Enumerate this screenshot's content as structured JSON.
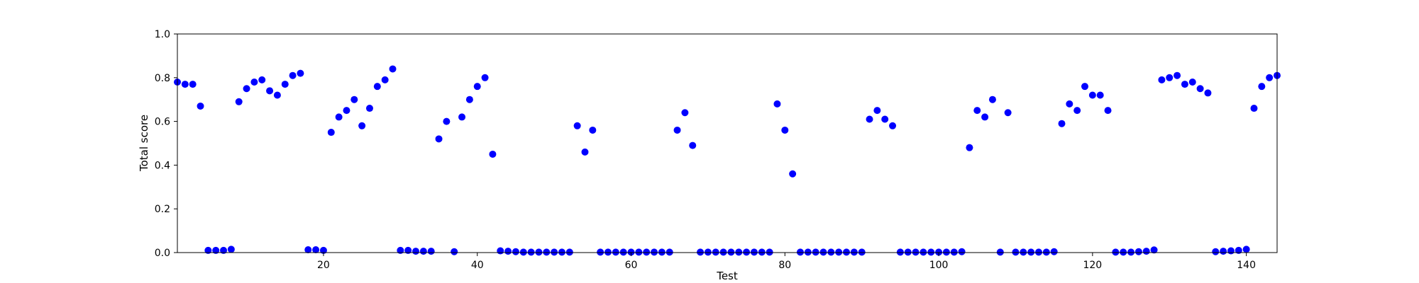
{
  "chart_data": {
    "type": "scatter",
    "title": "",
    "xlabel": "Test",
    "ylabel": "Total score",
    "xlim": [
      1,
      144
    ],
    "ylim": [
      0.0,
      1.0
    ],
    "xticks": [
      20,
      40,
      60,
      80,
      100,
      120,
      140
    ],
    "yticks": [
      0.0,
      0.2,
      0.4,
      0.6,
      0.8,
      1.0
    ],
    "xtick_labels": [
      "20",
      "40",
      "60",
      "80",
      "100",
      "120",
      "140"
    ],
    "ytick_labels": [
      "0.0",
      "0.2",
      "0.4",
      "0.6",
      "0.8",
      "1.0"
    ],
    "grid": false,
    "marker_color": "#0000ff",
    "x": [
      1,
      2,
      3,
      4,
      5,
      6,
      7,
      8,
      9,
      10,
      11,
      12,
      13,
      14,
      15,
      16,
      17,
      18,
      19,
      20,
      21,
      22,
      23,
      24,
      25,
      26,
      27,
      28,
      29,
      30,
      31,
      32,
      33,
      34,
      35,
      36,
      37,
      38,
      39,
      40,
      41,
      42,
      43,
      44,
      45,
      46,
      47,
      48,
      49,
      50,
      51,
      52,
      53,
      54,
      55,
      56,
      57,
      58,
      59,
      60,
      61,
      62,
      63,
      64,
      65,
      66,
      67,
      68,
      69,
      70,
      71,
      72,
      73,
      74,
      75,
      76,
      77,
      78,
      79,
      80,
      81,
      82,
      83,
      84,
      85,
      86,
      87,
      88,
      89,
      90,
      91,
      92,
      93,
      94,
      95,
      96,
      97,
      98,
      99,
      100,
      101,
      102,
      103,
      104,
      105,
      106,
      107,
      108,
      109,
      110,
      111,
      112,
      113,
      114,
      115,
      116,
      117,
      118,
      119,
      120,
      121,
      122,
      123,
      124,
      125,
      126,
      127,
      128,
      129,
      130,
      131,
      132,
      133,
      134,
      135,
      136,
      137,
      138,
      139,
      140,
      141,
      142,
      143,
      144
    ],
    "y": [
      0.78,
      0.77,
      0.77,
      0.67,
      0.01,
      0.01,
      0.01,
      0.015,
      0.69,
      0.75,
      0.78,
      0.79,
      0.74,
      0.72,
      0.77,
      0.81,
      0.82,
      0.013,
      0.013,
      0.01,
      0.55,
      0.62,
      0.65,
      0.7,
      0.58,
      0.66,
      0.76,
      0.79,
      0.84,
      0.01,
      0.01,
      0.006,
      0.006,
      0.006,
      0.52,
      0.6,
      0.004,
      0.62,
      0.7,
      0.76,
      0.8,
      0.45,
      0.008,
      0.006,
      0.004,
      0.002,
      0.002,
      0.002,
      0.002,
      0.002,
      0.002,
      0.002,
      0.58,
      0.46,
      0.56,
      0.002,
      0.002,
      0.002,
      0.002,
      0.002,
      0.002,
      0.002,
      0.002,
      0.002,
      0.002,
      0.56,
      0.64,
      0.49,
      0.002,
      0.002,
      0.002,
      0.002,
      0.002,
      0.002,
      0.002,
      0.002,
      0.002,
      0.002,
      0.68,
      0.56,
      0.36,
      0.002,
      0.002,
      0.002,
      0.002,
      0.002,
      0.002,
      0.002,
      0.002,
      0.002,
      0.61,
      0.65,
      0.61,
      0.58,
      0.002,
      0.002,
      0.002,
      0.002,
      0.002,
      0.002,
      0.002,
      0.002,
      0.004,
      0.48,
      0.65,
      0.62,
      0.7,
      0.002,
      0.64,
      0.002,
      0.002,
      0.002,
      0.002,
      0.002,
      0.004,
      0.59,
      0.68,
      0.65,
      0.76,
      0.72,
      0.72,
      0.65,
      0.002,
      0.002,
      0.002,
      0.004,
      0.006,
      0.012,
      0.79,
      0.8,
      0.81,
      0.77,
      0.78,
      0.75,
      0.73,
      0.004,
      0.006,
      0.008,
      0.01,
      0.015,
      0.66,
      0.76,
      0.8,
      0.81
    ]
  }
}
